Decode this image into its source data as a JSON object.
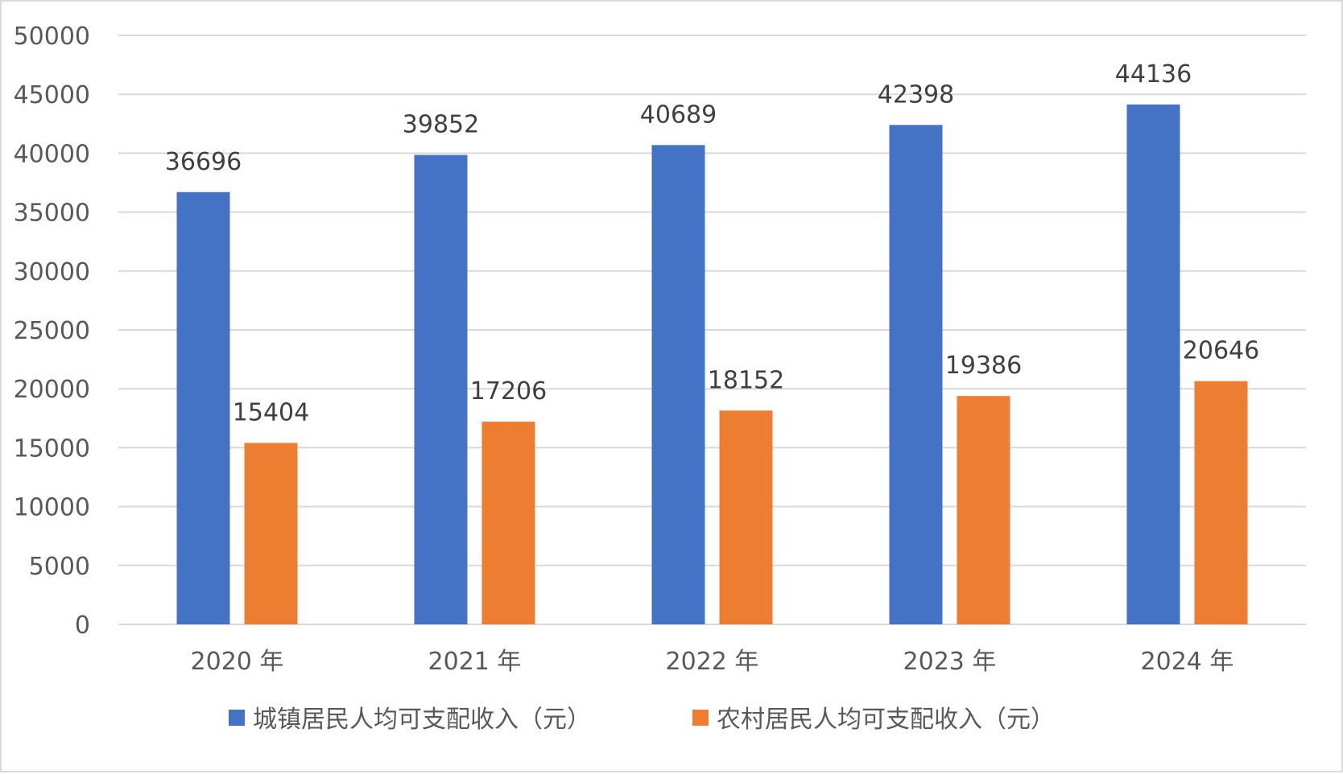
{
  "chart_data": {
    "type": "bar",
    "title": "",
    "xlabel": "",
    "ylabel": "",
    "categories": [
      "2020 年",
      "2021 年",
      "2022 年",
      "2023 年",
      "2024 年"
    ],
    "series": [
      {
        "name": "城镇居民人均可支配收入（元）",
        "color": "#4472c4",
        "values": [
          36696,
          39852,
          40689,
          42398,
          44136
        ]
      },
      {
        "name": "农村居民人均可支配收入（元）",
        "color": "#ed7d31",
        "values": [
          15404,
          17206,
          18152,
          19386,
          20646
        ]
      }
    ],
    "ylim": [
      0,
      50000
    ],
    "yticks": [
      0,
      5000,
      10000,
      15000,
      20000,
      25000,
      30000,
      35000,
      40000,
      45000,
      50000
    ],
    "grid": true,
    "legend_position": "bottom",
    "data_labels": true
  }
}
